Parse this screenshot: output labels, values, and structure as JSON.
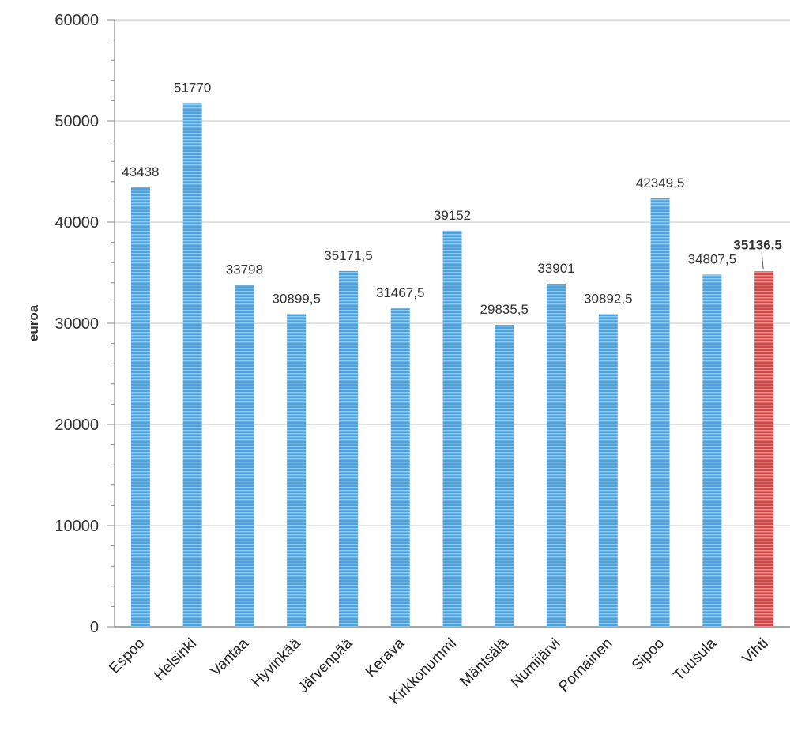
{
  "chart_data": {
    "type": "bar",
    "title": "",
    "xlabel": "",
    "ylabel": "euroa",
    "ylim": [
      0,
      60000
    ],
    "yticks": [
      0,
      10000,
      20000,
      30000,
      40000,
      50000,
      60000
    ],
    "grid": true,
    "categories": [
      "Espoo",
      "Helsinki",
      "Vantaa",
      "Hyvinkää",
      "Järvenpää",
      "Kerava",
      "Kirkkonummi",
      "Mäntsälä",
      "Numijärvi",
      "Pornainen",
      "Sipoo",
      "Tuusula",
      "Vihti"
    ],
    "values": [
      43438,
      51770,
      33798,
      30899.5,
      35171.5,
      31467.5,
      39152,
      29835.5,
      33901,
      30892.5,
      42349.5,
      34807.5,
      35136.5
    ],
    "data_labels": [
      "43438",
      "51770",
      "33798",
      "30899,5",
      "35171,5",
      "31467,5",
      "39152",
      "29835,5",
      "33901",
      "30892,5",
      "42349,5",
      "34807,5",
      "35136,5"
    ],
    "highlight_index": 12,
    "colors": {
      "bar": "#4aa3e0",
      "bar_stripe": "#8ccaf2",
      "highlight": "#d64545",
      "highlight_stripe": "#ee8f8f",
      "grid": "#c8c8c8",
      "axis": "#888888"
    }
  }
}
